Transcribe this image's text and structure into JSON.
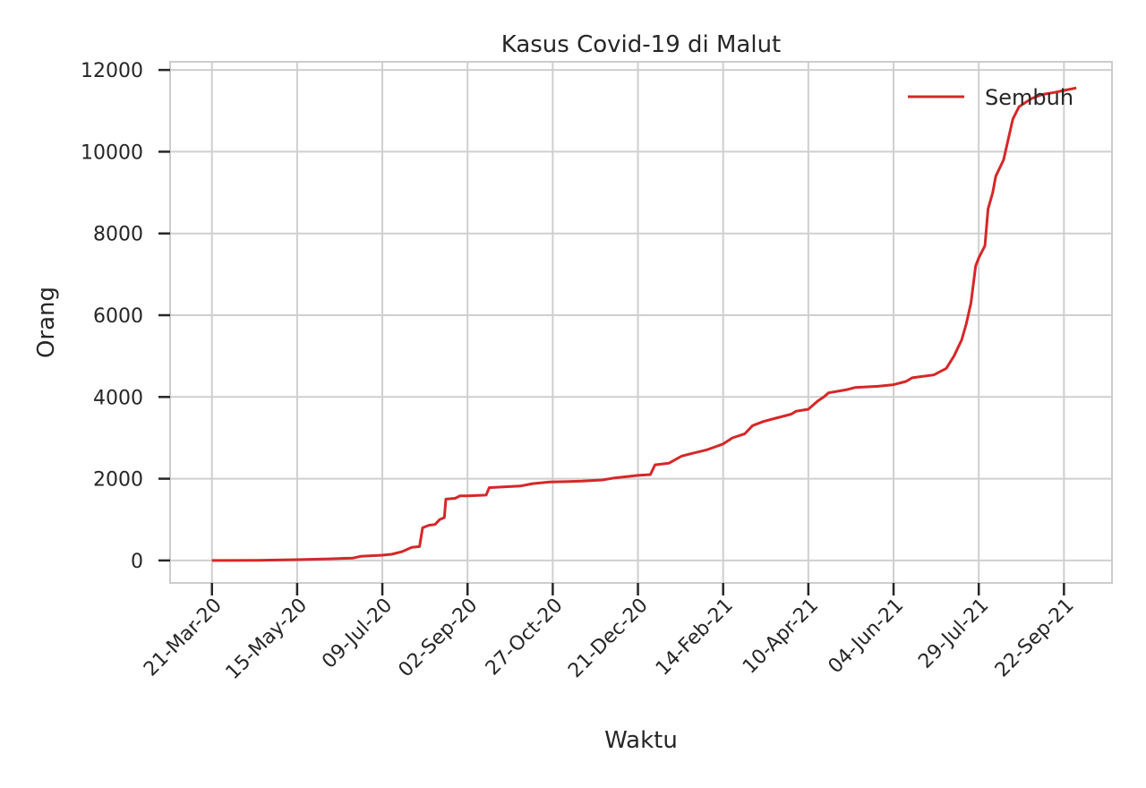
{
  "chart_data": {
    "type": "line",
    "title": "Kasus Covid-19 di Malut",
    "xlabel": "Waktu",
    "ylabel": "Orang",
    "ylim": [
      -550,
      12200
    ],
    "xlim": [
      "2020-02-23",
      "2021-10-23"
    ],
    "yticks": [
      0,
      2000,
      4000,
      6000,
      8000,
      10000,
      12000
    ],
    "xticks": [
      {
        "date": "2020-03-21",
        "label": "21-Mar-20"
      },
      {
        "date": "2020-05-15",
        "label": "15-May-20"
      },
      {
        "date": "2020-07-09",
        "label": "09-Jul-20"
      },
      {
        "date": "2020-09-02",
        "label": "02-Sep-20"
      },
      {
        "date": "2020-10-27",
        "label": "27-Oct-20"
      },
      {
        "date": "2020-12-21",
        "label": "21-Dec-20"
      },
      {
        "date": "2021-02-14",
        "label": "14-Feb-21"
      },
      {
        "date": "2021-04-10",
        "label": "10-Apr-21"
      },
      {
        "date": "2021-06-04",
        "label": "04-Jun-21"
      },
      {
        "date": "2021-07-29",
        "label": "29-Jul-21"
      },
      {
        "date": "2021-09-22",
        "label": "22-Sep-21"
      }
    ],
    "grid": true,
    "legend_position": "top-right",
    "series": [
      {
        "name": "Sembuh",
        "color": "#d62728",
        "points": [
          [
            "2020-03-21",
            0
          ],
          [
            "2020-04-20",
            5
          ],
          [
            "2020-05-15",
            20
          ],
          [
            "2020-06-05",
            40
          ],
          [
            "2020-06-20",
            60
          ],
          [
            "2020-06-25",
            100
          ],
          [
            "2020-07-09",
            130
          ],
          [
            "2020-07-15",
            150
          ],
          [
            "2020-07-22",
            220
          ],
          [
            "2020-07-28",
            320
          ],
          [
            "2020-08-02",
            340
          ],
          [
            "2020-08-04",
            800
          ],
          [
            "2020-08-08",
            860
          ],
          [
            "2020-08-12",
            880
          ],
          [
            "2020-08-15",
            1000
          ],
          [
            "2020-08-18",
            1050
          ],
          [
            "2020-08-19",
            1500
          ],
          [
            "2020-08-25",
            1520
          ],
          [
            "2020-08-28",
            1580
          ],
          [
            "2020-09-02",
            1580
          ],
          [
            "2020-09-14",
            1600
          ],
          [
            "2020-09-16",
            1780
          ],
          [
            "2020-09-25",
            1800
          ],
          [
            "2020-10-06",
            1820
          ],
          [
            "2020-10-14",
            1880
          ],
          [
            "2020-10-25",
            1920
          ],
          [
            "2020-11-15",
            1940
          ],
          [
            "2020-11-28",
            1970
          ],
          [
            "2020-12-06",
            2020
          ],
          [
            "2020-12-21",
            2080
          ],
          [
            "2020-12-29",
            2100
          ],
          [
            "2021-01-01",
            2340
          ],
          [
            "2021-01-10",
            2380
          ],
          [
            "2021-01-18",
            2550
          ],
          [
            "2021-01-25",
            2620
          ],
          [
            "2021-02-03",
            2700
          ],
          [
            "2021-02-14",
            2850
          ],
          [
            "2021-02-20",
            3000
          ],
          [
            "2021-02-28",
            3100
          ],
          [
            "2021-03-05",
            3300
          ],
          [
            "2021-03-12",
            3400
          ],
          [
            "2021-03-20",
            3480
          ],
          [
            "2021-03-30",
            3580
          ],
          [
            "2021-04-02",
            3650
          ],
          [
            "2021-04-10",
            3700
          ],
          [
            "2021-04-16",
            3900
          ],
          [
            "2021-04-20",
            4000
          ],
          [
            "2021-04-23",
            4100
          ],
          [
            "2021-05-05",
            4180
          ],
          [
            "2021-05-10",
            4230
          ],
          [
            "2021-05-25",
            4260
          ],
          [
            "2021-06-04",
            4300
          ],
          [
            "2021-06-12",
            4380
          ],
          [
            "2021-06-16",
            4470
          ],
          [
            "2021-06-30",
            4540
          ],
          [
            "2021-07-08",
            4700
          ],
          [
            "2021-07-13",
            5000
          ],
          [
            "2021-07-18",
            5400
          ],
          [
            "2021-07-21",
            5800
          ],
          [
            "2021-07-24",
            6300
          ],
          [
            "2021-07-27",
            7200
          ],
          [
            "2021-07-29",
            7400
          ],
          [
            "2021-08-02",
            7700
          ],
          [
            "2021-08-04",
            8600
          ],
          [
            "2021-08-07",
            9000
          ],
          [
            "2021-08-09",
            9400
          ],
          [
            "2021-08-14",
            9800
          ],
          [
            "2021-08-17",
            10300
          ],
          [
            "2021-08-20",
            10800
          ],
          [
            "2021-08-24",
            11100
          ],
          [
            "2021-09-01",
            11300
          ],
          [
            "2021-09-08",
            11400
          ],
          [
            "2021-09-16",
            11450
          ],
          [
            "2021-09-22",
            11500
          ],
          [
            "2021-09-30",
            11560
          ]
        ]
      }
    ]
  }
}
